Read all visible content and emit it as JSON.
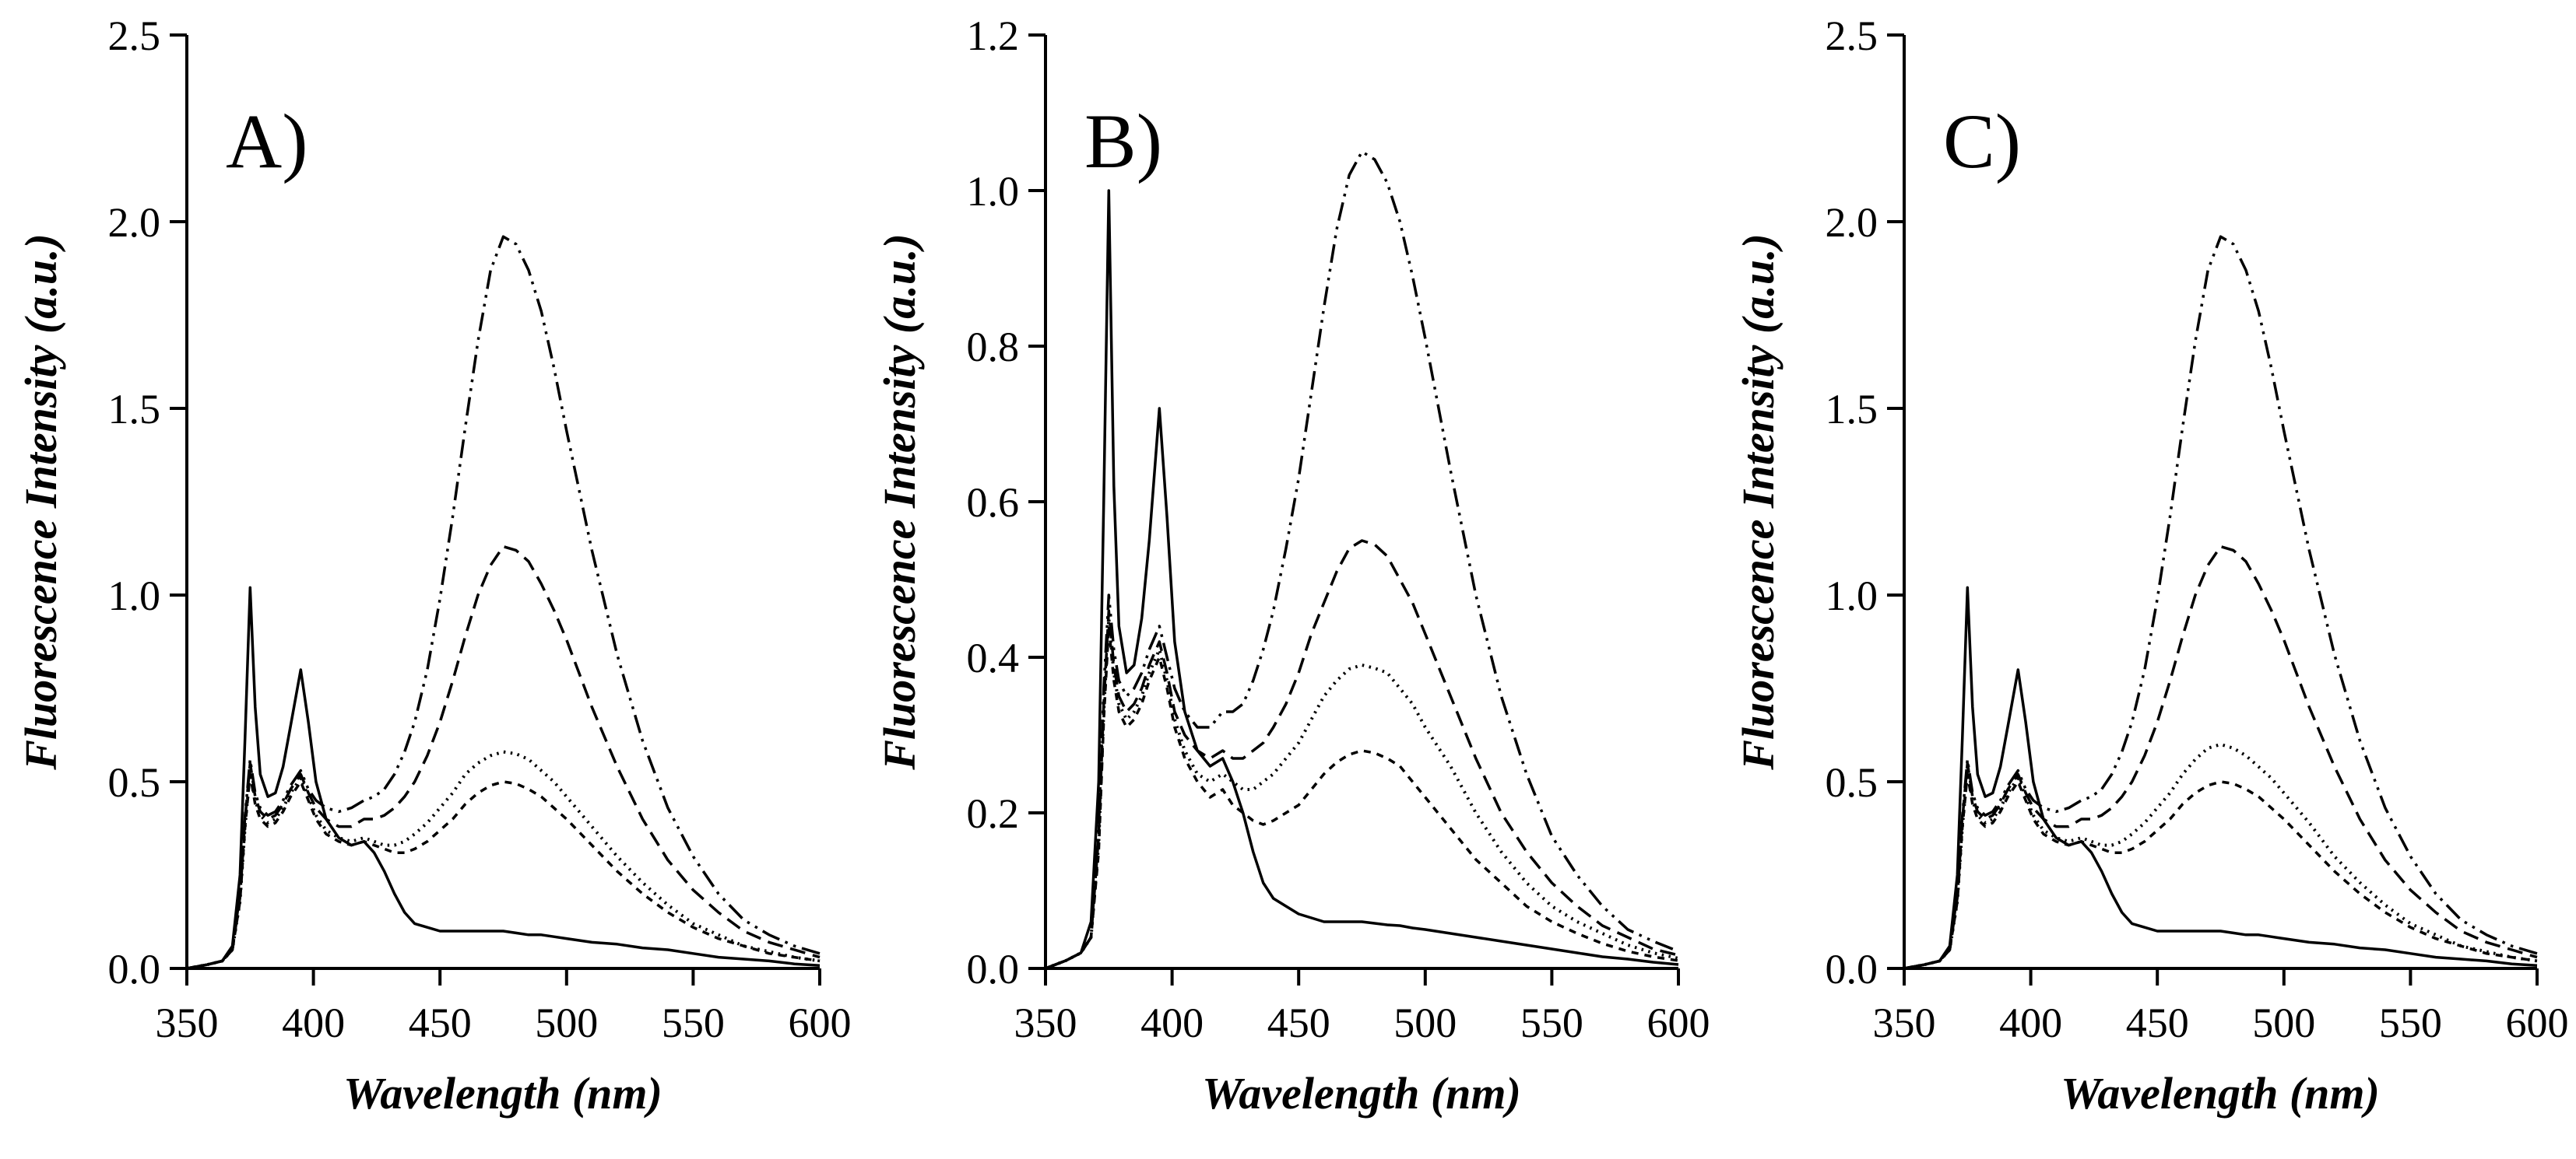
{
  "figure": {
    "background": "#ffffff",
    "line_color": "#000000",
    "description": "Three-panel fluorescence emission spectra figure"
  },
  "chart_data": [
    {
      "type": "line",
      "panel_label": "A)",
      "xlabel": "Wavelength (nm)",
      "ylabel": "Fluorescence Intensity (a.u.)",
      "xlim": [
        350,
        600
      ],
      "ylim": [
        0,
        2.5
      ],
      "xticks": [
        350,
        400,
        450,
        500,
        550,
        600
      ],
      "xtick_labels": [
        "350",
        "400",
        "450",
        "500",
        "550",
        "600"
      ],
      "yticks": [
        0.0,
        0.5,
        1.0,
        1.5,
        2.0,
        2.5
      ],
      "ytick_labels": [
        "0.0",
        "0.5",
        "1.0",
        "1.5",
        "2.0",
        "2.5"
      ],
      "grid": false,
      "legend": "none",
      "x": [
        350,
        358,
        364,
        368,
        371,
        373,
        375,
        377,
        379,
        382,
        385,
        388,
        391,
        395,
        398,
        401,
        405,
        410,
        415,
        420,
        424,
        428,
        432,
        436,
        440,
        445,
        450,
        455,
        460,
        465,
        470,
        475,
        480,
        485,
        490,
        495,
        500,
        510,
        520,
        530,
        540,
        550,
        560,
        570,
        580,
        590,
        600
      ],
      "series": [
        {
          "name": "solid",
          "dash": "solid",
          "y": [
            0.0,
            0.01,
            0.02,
            0.06,
            0.25,
            0.62,
            1.02,
            0.7,
            0.52,
            0.46,
            0.47,
            0.54,
            0.65,
            0.8,
            0.66,
            0.5,
            0.4,
            0.35,
            0.33,
            0.34,
            0.31,
            0.26,
            0.2,
            0.15,
            0.12,
            0.11,
            0.1,
            0.1,
            0.1,
            0.1,
            0.1,
            0.1,
            0.095,
            0.09,
            0.09,
            0.085,
            0.08,
            0.07,
            0.065,
            0.055,
            0.05,
            0.04,
            0.03,
            0.025,
            0.02,
            0.012,
            0.008
          ]
        },
        {
          "name": "short-dash",
          "dash": "short-dash",
          "y": [
            0.0,
            0.01,
            0.02,
            0.05,
            0.18,
            0.38,
            0.52,
            0.44,
            0.4,
            0.38,
            0.39,
            0.42,
            0.46,
            0.5,
            0.45,
            0.4,
            0.36,
            0.34,
            0.33,
            0.34,
            0.33,
            0.32,
            0.31,
            0.31,
            0.32,
            0.34,
            0.37,
            0.4,
            0.44,
            0.47,
            0.49,
            0.5,
            0.495,
            0.48,
            0.46,
            0.43,
            0.4,
            0.33,
            0.26,
            0.2,
            0.15,
            0.11,
            0.08,
            0.06,
            0.04,
            0.03,
            0.02
          ]
        },
        {
          "name": "dotted",
          "dash": "dotted",
          "y": [
            0.0,
            0.01,
            0.02,
            0.05,
            0.18,
            0.38,
            0.53,
            0.45,
            0.41,
            0.39,
            0.4,
            0.43,
            0.47,
            0.51,
            0.46,
            0.41,
            0.37,
            0.35,
            0.34,
            0.35,
            0.34,
            0.33,
            0.33,
            0.34,
            0.36,
            0.39,
            0.43,
            0.47,
            0.52,
            0.55,
            0.57,
            0.58,
            0.575,
            0.56,
            0.53,
            0.5,
            0.46,
            0.38,
            0.3,
            0.23,
            0.17,
            0.12,
            0.09,
            0.06,
            0.045,
            0.03,
            0.02
          ]
        },
        {
          "name": "long-dash",
          "dash": "long-dash",
          "y": [
            0.0,
            0.01,
            0.02,
            0.05,
            0.19,
            0.4,
            0.55,
            0.46,
            0.42,
            0.4,
            0.41,
            0.44,
            0.48,
            0.52,
            0.47,
            0.43,
            0.4,
            0.38,
            0.38,
            0.4,
            0.4,
            0.41,
            0.43,
            0.46,
            0.5,
            0.57,
            0.66,
            0.77,
            0.89,
            1.0,
            1.08,
            1.13,
            1.12,
            1.09,
            1.03,
            0.96,
            0.88,
            0.7,
            0.54,
            0.4,
            0.29,
            0.21,
            0.15,
            0.1,
            0.07,
            0.05,
            0.03
          ]
        },
        {
          "name": "dash-dot-dot",
          "dash": "dash-dot-dot",
          "y": [
            0.0,
            0.01,
            0.02,
            0.05,
            0.2,
            0.41,
            0.56,
            0.47,
            0.43,
            0.41,
            0.42,
            0.45,
            0.49,
            0.53,
            0.48,
            0.45,
            0.43,
            0.42,
            0.43,
            0.45,
            0.46,
            0.48,
            0.52,
            0.58,
            0.66,
            0.8,
            0.99,
            1.21,
            1.45,
            1.68,
            1.87,
            1.96,
            1.94,
            1.87,
            1.76,
            1.61,
            1.44,
            1.12,
            0.84,
            0.61,
            0.43,
            0.3,
            0.2,
            0.13,
            0.09,
            0.06,
            0.04
          ]
        }
      ]
    },
    {
      "type": "line",
      "panel_label": "B)",
      "xlabel": "Wavelength (nm)",
      "ylabel": "Fluorescence Intensity (a.u.)",
      "xlim": [
        350,
        600
      ],
      "ylim": [
        0,
        1.2
      ],
      "xticks": [
        350,
        400,
        450,
        500,
        550,
        600
      ],
      "xtick_labels": [
        "350",
        "400",
        "450",
        "500",
        "550",
        "600"
      ],
      "yticks": [
        0.0,
        0.2,
        0.4,
        0.6,
        0.8,
        1.0,
        1.2
      ],
      "ytick_labels": [
        "0.0",
        "0.2",
        "0.4",
        "0.6",
        "0.8",
        "1.0",
        "1.2"
      ],
      "grid": false,
      "legend": "none",
      "x": [
        350,
        358,
        364,
        368,
        371,
        373,
        375,
        377,
        379,
        382,
        385,
        388,
        391,
        395,
        398,
        401,
        405,
        410,
        415,
        420,
        424,
        428,
        432,
        436,
        440,
        445,
        450,
        455,
        460,
        465,
        470,
        475,
        480,
        485,
        490,
        495,
        500,
        510,
        520,
        530,
        540,
        550,
        560,
        570,
        580,
        590,
        600
      ],
      "series": [
        {
          "name": "solid",
          "dash": "solid",
          "y": [
            0.0,
            0.01,
            0.02,
            0.06,
            0.24,
            0.6,
            1.0,
            0.62,
            0.44,
            0.38,
            0.39,
            0.45,
            0.55,
            0.72,
            0.58,
            0.42,
            0.33,
            0.28,
            0.26,
            0.27,
            0.24,
            0.2,
            0.15,
            0.11,
            0.09,
            0.08,
            0.07,
            0.065,
            0.06,
            0.06,
            0.06,
            0.06,
            0.058,
            0.056,
            0.055,
            0.052,
            0.05,
            0.045,
            0.04,
            0.035,
            0.03,
            0.025,
            0.02,
            0.015,
            0.012,
            0.008,
            0.005
          ]
        },
        {
          "name": "short-dash",
          "dash": "short-dash",
          "y": [
            0.0,
            0.01,
            0.02,
            0.04,
            0.15,
            0.32,
            0.44,
            0.37,
            0.33,
            0.31,
            0.32,
            0.34,
            0.37,
            0.4,
            0.36,
            0.31,
            0.27,
            0.24,
            0.22,
            0.23,
            0.21,
            0.2,
            0.19,
            0.185,
            0.19,
            0.2,
            0.21,
            0.23,
            0.25,
            0.265,
            0.275,
            0.28,
            0.277,
            0.27,
            0.26,
            0.24,
            0.22,
            0.18,
            0.14,
            0.11,
            0.08,
            0.06,
            0.045,
            0.032,
            0.022,
            0.015,
            0.01
          ]
        },
        {
          "name": "dotted",
          "dash": "dotted",
          "y": [
            0.0,
            0.01,
            0.02,
            0.04,
            0.16,
            0.33,
            0.45,
            0.38,
            0.34,
            0.32,
            0.33,
            0.35,
            0.38,
            0.41,
            0.37,
            0.32,
            0.28,
            0.25,
            0.24,
            0.25,
            0.24,
            0.23,
            0.23,
            0.24,
            0.25,
            0.27,
            0.29,
            0.32,
            0.35,
            0.37,
            0.385,
            0.39,
            0.386,
            0.38,
            0.36,
            0.34,
            0.31,
            0.26,
            0.2,
            0.15,
            0.11,
            0.08,
            0.06,
            0.045,
            0.03,
            0.02,
            0.013
          ]
        },
        {
          "name": "long-dash",
          "dash": "long-dash",
          "y": [
            0.0,
            0.01,
            0.02,
            0.04,
            0.17,
            0.34,
            0.46,
            0.39,
            0.35,
            0.33,
            0.34,
            0.36,
            0.39,
            0.42,
            0.38,
            0.33,
            0.3,
            0.28,
            0.27,
            0.28,
            0.27,
            0.27,
            0.28,
            0.29,
            0.31,
            0.34,
            0.38,
            0.43,
            0.47,
            0.51,
            0.54,
            0.55,
            0.545,
            0.53,
            0.5,
            0.47,
            0.43,
            0.35,
            0.27,
            0.2,
            0.15,
            0.11,
            0.08,
            0.055,
            0.04,
            0.025,
            0.017
          ]
        },
        {
          "name": "dash-dot-dot",
          "dash": "dash-dot-dot",
          "y": [
            0.0,
            0.01,
            0.02,
            0.04,
            0.18,
            0.36,
            0.48,
            0.41,
            0.37,
            0.35,
            0.36,
            0.38,
            0.41,
            0.44,
            0.4,
            0.36,
            0.33,
            0.31,
            0.31,
            0.33,
            0.33,
            0.34,
            0.37,
            0.41,
            0.46,
            0.54,
            0.63,
            0.74,
            0.85,
            0.95,
            1.02,
            1.05,
            1.04,
            1.01,
            0.96,
            0.89,
            0.81,
            0.64,
            0.48,
            0.35,
            0.25,
            0.17,
            0.12,
            0.08,
            0.05,
            0.035,
            0.022
          ]
        }
      ]
    },
    {
      "type": "line",
      "panel_label": "C)",
      "xlabel": "Wavelength (nm)",
      "ylabel": "Fluorescence Intensity (a.u.)",
      "xlim": [
        350,
        600
      ],
      "ylim": [
        0,
        2.5
      ],
      "xticks": [
        350,
        400,
        450,
        500,
        550,
        600
      ],
      "xtick_labels": [
        "350",
        "400",
        "450",
        "500",
        "550",
        "600"
      ],
      "yticks": [
        0.0,
        0.5,
        1.0,
        1.5,
        2.0,
        2.5
      ],
      "ytick_labels": [
        "0.0",
        "0.5",
        "1.0",
        "1.5",
        "2.0",
        "2.5"
      ],
      "grid": false,
      "legend": "none",
      "x": [
        350,
        358,
        364,
        368,
        371,
        373,
        375,
        377,
        379,
        382,
        385,
        388,
        391,
        395,
        398,
        401,
        405,
        410,
        415,
        420,
        424,
        428,
        432,
        436,
        440,
        445,
        450,
        455,
        460,
        465,
        470,
        475,
        480,
        485,
        490,
        495,
        500,
        510,
        520,
        530,
        540,
        550,
        560,
        570,
        580,
        590,
        600
      ],
      "series": [
        {
          "name": "solid",
          "dash": "solid",
          "y": [
            0.0,
            0.01,
            0.02,
            0.06,
            0.25,
            0.62,
            1.02,
            0.7,
            0.52,
            0.46,
            0.47,
            0.54,
            0.65,
            0.8,
            0.66,
            0.5,
            0.4,
            0.35,
            0.33,
            0.34,
            0.31,
            0.26,
            0.2,
            0.15,
            0.12,
            0.11,
            0.1,
            0.1,
            0.1,
            0.1,
            0.1,
            0.1,
            0.095,
            0.09,
            0.09,
            0.085,
            0.08,
            0.07,
            0.065,
            0.055,
            0.05,
            0.04,
            0.03,
            0.025,
            0.02,
            0.012,
            0.008
          ]
        },
        {
          "name": "short-dash",
          "dash": "short-dash",
          "y": [
            0.0,
            0.01,
            0.02,
            0.05,
            0.18,
            0.38,
            0.52,
            0.44,
            0.4,
            0.38,
            0.39,
            0.42,
            0.46,
            0.5,
            0.45,
            0.4,
            0.36,
            0.34,
            0.33,
            0.34,
            0.33,
            0.32,
            0.31,
            0.31,
            0.32,
            0.34,
            0.37,
            0.4,
            0.44,
            0.47,
            0.49,
            0.5,
            0.495,
            0.48,
            0.46,
            0.43,
            0.4,
            0.33,
            0.26,
            0.2,
            0.15,
            0.11,
            0.08,
            0.06,
            0.04,
            0.03,
            0.02
          ]
        },
        {
          "name": "dotted",
          "dash": "dotted",
          "y": [
            0.0,
            0.01,
            0.02,
            0.05,
            0.18,
            0.38,
            0.53,
            0.45,
            0.41,
            0.39,
            0.4,
            0.43,
            0.47,
            0.51,
            0.46,
            0.41,
            0.37,
            0.35,
            0.34,
            0.35,
            0.34,
            0.33,
            0.33,
            0.34,
            0.36,
            0.39,
            0.43,
            0.47,
            0.52,
            0.56,
            0.59,
            0.6,
            0.59,
            0.57,
            0.54,
            0.51,
            0.47,
            0.39,
            0.3,
            0.23,
            0.17,
            0.12,
            0.09,
            0.06,
            0.045,
            0.03,
            0.02
          ]
        },
        {
          "name": "long-dash",
          "dash": "long-dash",
          "y": [
            0.0,
            0.01,
            0.02,
            0.05,
            0.19,
            0.4,
            0.55,
            0.46,
            0.42,
            0.4,
            0.41,
            0.44,
            0.48,
            0.52,
            0.47,
            0.43,
            0.4,
            0.38,
            0.38,
            0.4,
            0.4,
            0.41,
            0.43,
            0.46,
            0.5,
            0.57,
            0.66,
            0.77,
            0.89,
            1.0,
            1.08,
            1.13,
            1.12,
            1.09,
            1.03,
            0.96,
            0.88,
            0.7,
            0.54,
            0.4,
            0.29,
            0.21,
            0.15,
            0.1,
            0.07,
            0.05,
            0.03
          ]
        },
        {
          "name": "dash-dot-dot",
          "dash": "dash-dot-dot",
          "y": [
            0.0,
            0.01,
            0.02,
            0.05,
            0.2,
            0.41,
            0.56,
            0.47,
            0.43,
            0.41,
            0.42,
            0.45,
            0.49,
            0.53,
            0.48,
            0.45,
            0.43,
            0.42,
            0.43,
            0.45,
            0.46,
            0.48,
            0.52,
            0.58,
            0.66,
            0.8,
            0.99,
            1.21,
            1.45,
            1.68,
            1.87,
            1.96,
            1.94,
            1.87,
            1.76,
            1.61,
            1.44,
            1.12,
            0.84,
            0.61,
            0.43,
            0.3,
            0.2,
            0.13,
            0.09,
            0.06,
            0.04
          ]
        }
      ]
    }
  ]
}
